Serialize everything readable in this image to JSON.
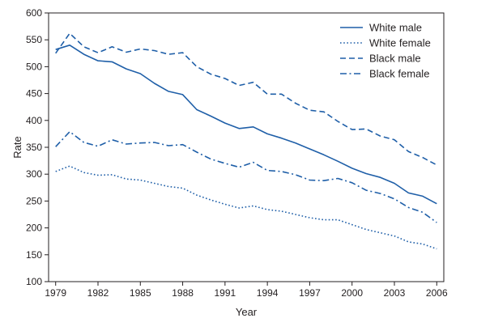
{
  "chart_data": {
    "type": "line",
    "title": "",
    "xlabel": "Year",
    "ylabel": "Rate",
    "xlim": [
      1978.5,
      2006.5
    ],
    "ylim": [
      100,
      600
    ],
    "x_ticks": [
      1979,
      1982,
      1985,
      1988,
      1991,
      1994,
      1997,
      2000,
      2003,
      2006
    ],
    "y_ticks": [
      100,
      150,
      200,
      250,
      300,
      350,
      400,
      450,
      500,
      550,
      600
    ],
    "grid": false,
    "legend_position": "top-right",
    "line_color": "#1f5fa8",
    "x": [
      1979,
      1980,
      1981,
      1982,
      1983,
      1984,
      1985,
      1986,
      1987,
      1988,
      1989,
      1990,
      1991,
      1992,
      1993,
      1994,
      1995,
      1996,
      1997,
      1998,
      1999,
      2000,
      2001,
      2002,
      2003,
      2004,
      2005,
      2006
    ],
    "series": [
      {
        "name": "White male",
        "style": "solid",
        "values": [
          532,
          540,
          523,
          511,
          509,
          496,
          487,
          469,
          454,
          448,
          420,
          408,
          395,
          385,
          388,
          375,
          367,
          358,
          347,
          336,
          324,
          311,
          301,
          294,
          283,
          265,
          259,
          245
        ]
      },
      {
        "name": "White female",
        "style": "dotted",
        "values": [
          305,
          315,
          303,
          298,
          299,
          291,
          289,
          283,
          277,
          274,
          261,
          252,
          244,
          237,
          241,
          234,
          231,
          225,
          219,
          215,
          215,
          206,
          197,
          191,
          185,
          174,
          170,
          161
        ]
      },
      {
        "name": "Black male",
        "style": "dashed",
        "values": [
          525,
          562,
          537,
          526,
          537,
          527,
          533,
          530,
          523,
          526,
          500,
          486,
          478,
          465,
          471,
          449,
          449,
          432,
          419,
          416,
          398,
          383,
          384,
          371,
          364,
          342,
          331,
          317
        ]
      },
      {
        "name": "Black female",
        "style": "dashdot",
        "values": [
          351,
          379,
          359,
          352,
          364,
          356,
          358,
          359,
          353,
          355,
          341,
          328,
          320,
          313,
          322,
          307,
          305,
          299,
          289,
          288,
          292,
          284,
          270,
          264,
          254,
          238,
          229,
          210
        ]
      }
    ]
  }
}
